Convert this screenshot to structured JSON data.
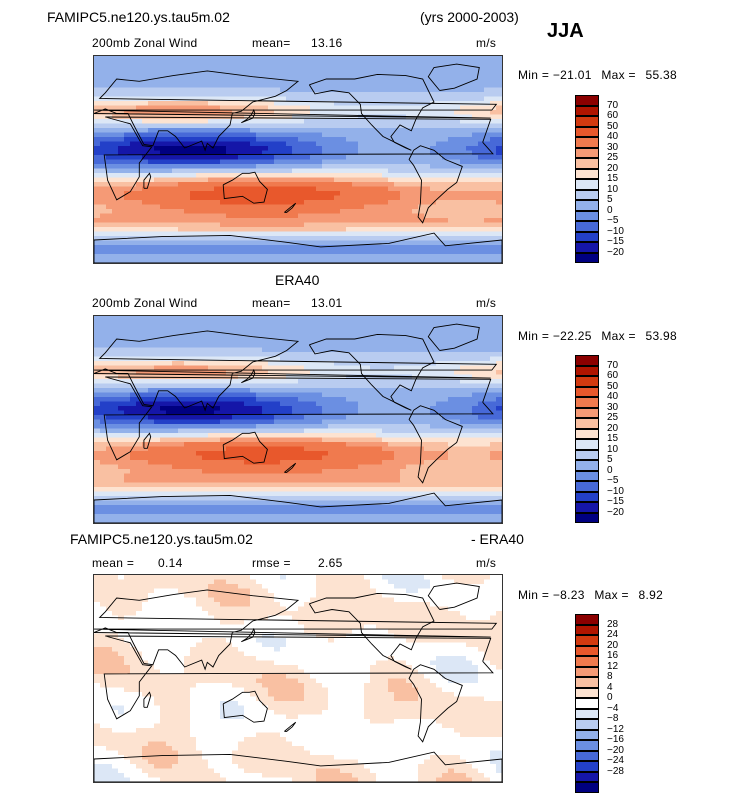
{
  "header": {
    "case_name": "FAMIPC5.ne120.ys.tau5m.02",
    "years": "(yrs 2000-2003)",
    "season": "JJA"
  },
  "panels": [
    {
      "title": "",
      "field": "200mb Zonal Wind",
      "mean_label": "mean=",
      "mean_value": "13.16",
      "units": "m/s",
      "min_label": "Min =",
      "min_value": "−21.01",
      "max_label": "Max =",
      "max_value": "55.38",
      "colorbar": [
        "70",
        "60",
        "50",
        "40",
        "30",
        "25",
        "20",
        "15",
        "10",
        "5",
        "0",
        "−5",
        "−10",
        "−15",
        "−20"
      ]
    },
    {
      "title": "ERA40",
      "field": "200mb Zonal Wind",
      "mean_label": "mean=",
      "mean_value": "13.01",
      "units": "m/s",
      "min_label": "Min =",
      "min_value": "−22.25",
      "max_label": "Max =",
      "max_value": "53.98",
      "colorbar": [
        "70",
        "60",
        "50",
        "40",
        "30",
        "25",
        "20",
        "15",
        "10",
        "5",
        "0",
        "−5",
        "−10",
        "−15",
        "−20"
      ]
    },
    {
      "title_left": "FAMIPC5.ne120.ys.tau5m.02",
      "title_right": "- ERA40",
      "mean_label": "mean =",
      "mean_value": "0.14",
      "rmse_label": "rmse =",
      "rmse_value": "2.65",
      "units": "m/s",
      "min_label": "Min =",
      "min_value": "−8.23",
      "max_label": "Max =",
      "max_value": "8.92",
      "colorbar": [
        "28",
        "24",
        "20",
        "16",
        "12",
        "8",
        "4",
        "0",
        "−4",
        "−8",
        "−12",
        "−16",
        "−20",
        "−24",
        "−28"
      ]
    }
  ],
  "chart_data": {
    "type": "heatmap",
    "colors_abs": [
      "#8b0000",
      "#b01500",
      "#d23a10",
      "#e8582c",
      "#f07a4e",
      "#f59a76",
      "#f9c0a2",
      "#fde3d1",
      "#dce7f6",
      "#b9ccf0",
      "#93b1ea",
      "#6b8fe2",
      "#4769d8",
      "#2340c8",
      "#1516a8",
      "#000080"
    ],
    "colors_diff": [
      "#8b0000",
      "#b01500",
      "#d23a10",
      "#e8582c",
      "#f07a4e",
      "#f59a76",
      "#f9c0a2",
      "#fde3d1",
      "#ffffff",
      "#dce7f6",
      "#b9ccf0",
      "#93b1ea",
      "#6b8fe2",
      "#4769d8",
      "#2340c8",
      "#1516a8",
      "#000080"
    ]
  }
}
